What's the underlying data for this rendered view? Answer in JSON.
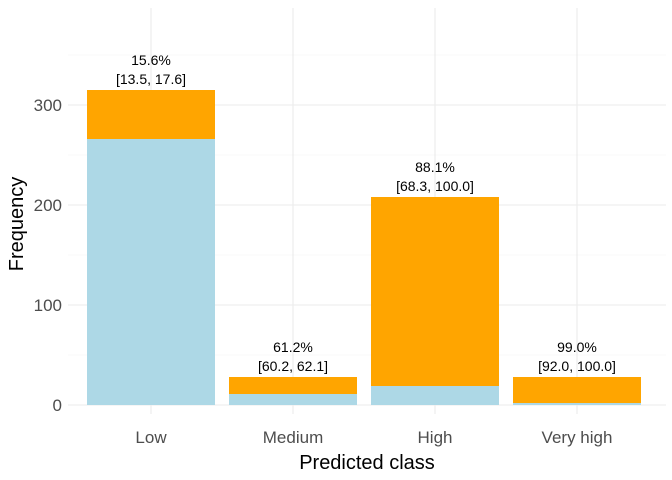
{
  "chart_data": {
    "type": "bar",
    "stacked": true,
    "categories": [
      "Low",
      "Medium",
      "High",
      "Very high"
    ],
    "series": [
      {
        "values": [
          266,
          11,
          19,
          2
        ],
        "color": "#add8e6"
      },
      {
        "values": [
          49,
          17,
          189,
          26
        ],
        "color": "#ffa500"
      }
    ],
    "totals": [
      315,
      28,
      208,
      28
    ],
    "bar_labels": [
      {
        "percent": "15.6%",
        "interval": "[13.5, 17.6]"
      },
      {
        "percent": "61.2%",
        "interval": "[60.2, 62.1]"
      },
      {
        "percent": "88.1%",
        "interval": "[68.3, 100.0]"
      },
      {
        "percent": "99.0%",
        "interval": "[92.0, 100.0]"
      }
    ],
    "xlabel": "Predicted class",
    "ylabel": "Frequency",
    "yticks": [
      0,
      100,
      200,
      300
    ],
    "ylim": [
      0,
      390
    ],
    "grid": true,
    "legend": "none"
  }
}
